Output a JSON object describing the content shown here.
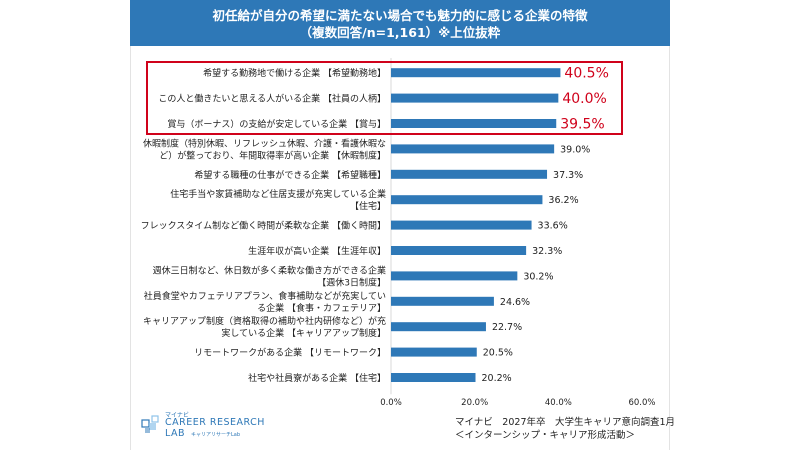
{
  "header": {
    "title_line1": "初任給が自分の希望に満たない場合でも魅力的に感じる企業の特徴",
    "title_line2": "（複数回答/n=1,161）※上位抜粋"
  },
  "colors": {
    "header_bg": "#2e78b7",
    "bar": "#2e78b7",
    "highlight_border": "#d0021b",
    "highlight_value": "#d0021b",
    "text": "#222222",
    "grid": "#d9d9d9"
  },
  "chart_data": {
    "type": "bar",
    "orientation": "horizontal",
    "title": "初任給が自分の希望に満たない場合でも魅力的に感じる企業の特徴（複数回答/n=1,161）※上位抜粋",
    "categories": [
      [
        "希望する勤務地で働ける企業 【希望勤務地】"
      ],
      [
        "この人と働きたいと思える人がいる企業 【社員の人柄】"
      ],
      [
        "賞与（ボーナス）の支給が安定している企業 【賞与】"
      ],
      [
        "休暇制度（特別休暇、リフレッシュ休暇、介護・看護休暇な",
        "ど）が整っており、年間取得率が高い企業 【休暇制度】"
      ],
      [
        "希望する職種の仕事ができる企業 【希望職種】"
      ],
      [
        "住宅手当や家賃補助など住居支援が充実している企業",
        "【住宅】"
      ],
      [
        "フレックスタイム制など働く時間が柔軟な企業 【働く時間】"
      ],
      [
        "生涯年収が高い企業 【生涯年収】"
      ],
      [
        "週休三日制など、休日数が多く柔軟な働き方ができる企業",
        "【週休3日制度】"
      ],
      [
        "社員食堂やカフェテリアプラン、食事補助などが充実してい",
        "る企業 【食事・カフェテリア】"
      ],
      [
        "キャリアアップ制度（資格取得の補助や社内研修など）が充",
        "実している企業 【キャリアアップ制度】"
      ],
      [
        "リモートワークがある企業 【リモートワーク】"
      ],
      [
        "社宅や社員寮がある企業 【住宅】"
      ]
    ],
    "values": [
      40.5,
      40.0,
      39.5,
      39.0,
      37.3,
      36.2,
      33.6,
      32.3,
      30.2,
      24.6,
      22.7,
      20.5,
      20.2
    ],
    "value_labels": [
      "40.5%",
      "40.0%",
      "39.5%",
      "39.0%",
      "37.3%",
      "36.2%",
      "33.6%",
      "32.3%",
      "30.2%",
      "24.6%",
      "22.7%",
      "20.5%",
      "20.2%"
    ],
    "highlighted_count": 3,
    "xlim": [
      0,
      60
    ],
    "xticks": [
      0,
      20,
      40,
      60
    ],
    "xtick_labels": [
      "0.0%",
      "20.0%",
      "40.0%",
      "60.0%"
    ],
    "xlabel": "",
    "ylabel": "",
    "grid": false
  },
  "source": {
    "line1": "マイナビ　2027年卒　大学生キャリア意向調査1月",
    "line2": "＜インターンシップ・キャリア形成活動＞"
  },
  "logo": {
    "brand": "マイナビ",
    "name_line1": "CAREER RESEARCH",
    "name_line2": "LAB",
    "sub": "キャリアリサーチLab"
  }
}
